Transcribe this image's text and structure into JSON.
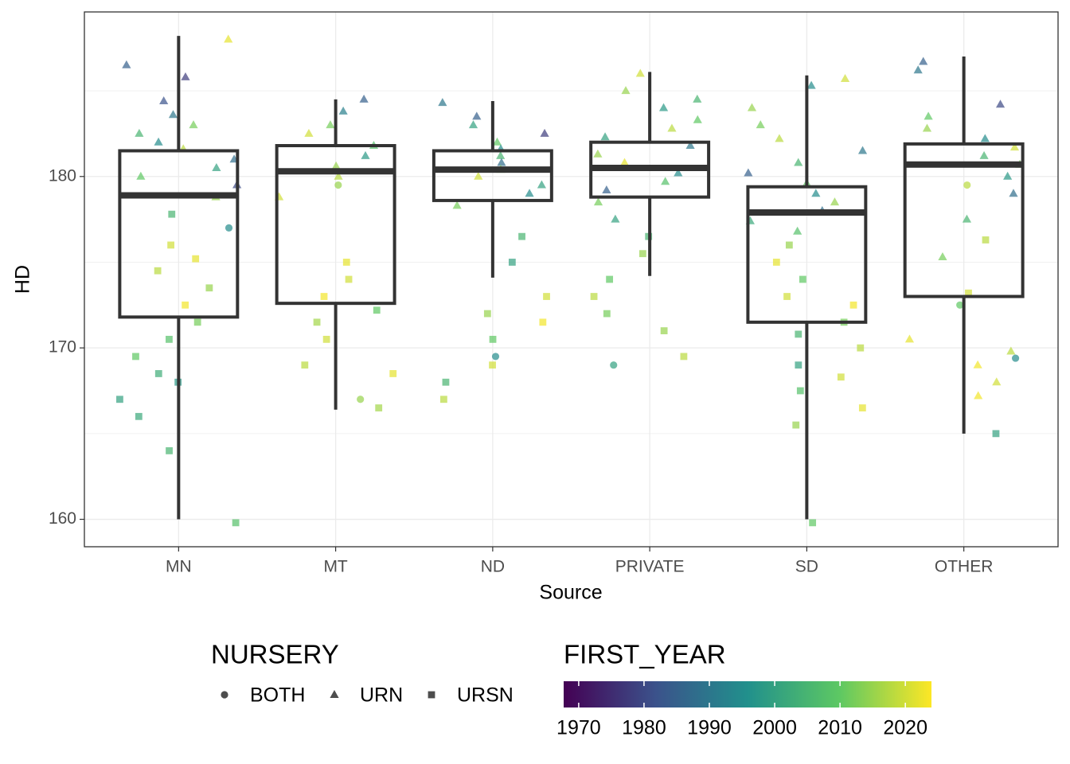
{
  "chart_data": {
    "type": "boxplot",
    "x_label": "Source",
    "y_label": "HD",
    "ylim": [
      158.4,
      189.6
    ],
    "yticks": [
      160,
      170,
      180
    ],
    "minor_yticks": [
      165,
      175,
      185
    ],
    "grid": true,
    "box_color": "#333333",
    "groups": [
      {
        "name": "MN",
        "min": 160,
        "q1": 171.8,
        "median": 178.9,
        "q3": 181.5,
        "max": 188.2,
        "points": [
          {
            "hd": 188,
            "nursery": 1,
            "first_year": 2022
          },
          {
            "hd": 186.5,
            "nursery": 1,
            "first_year": 1985
          },
          {
            "hd": 185.8,
            "nursery": 1,
            "first_year": 1978
          },
          {
            "hd": 184.4,
            "nursery": 1,
            "first_year": 1982
          },
          {
            "hd": 183.6,
            "nursery": 1,
            "first_year": 1990
          },
          {
            "hd": 183,
            "nursery": 1,
            "first_year": 2012
          },
          {
            "hd": 182.5,
            "nursery": 1,
            "first_year": 2005
          },
          {
            "hd": 182,
            "nursery": 1,
            "first_year": 1995
          },
          {
            "hd": 181.6,
            "nursery": 1,
            "first_year": 2018
          },
          {
            "hd": 181,
            "nursery": 1,
            "first_year": 1988
          },
          {
            "hd": 180.5,
            "nursery": 1,
            "first_year": 2000
          },
          {
            "hd": 180,
            "nursery": 1,
            "first_year": 2010
          },
          {
            "hd": 179.5,
            "nursery": 1,
            "first_year": 1980
          },
          {
            "hd": 178.8,
            "nursery": 1,
            "first_year": 2015
          },
          {
            "hd": 177.8,
            "nursery": 2,
            "first_year": 2005
          },
          {
            "hd": 177,
            "nursery": 0,
            "first_year": 1995
          },
          {
            "hd": 176,
            "nursery": 2,
            "first_year": 2020
          },
          {
            "hd": 175.2,
            "nursery": 2,
            "first_year": 2022
          },
          {
            "hd": 174.5,
            "nursery": 2,
            "first_year": 2018
          },
          {
            "hd": 173.5,
            "nursery": 2,
            "first_year": 2015
          },
          {
            "hd": 172.5,
            "nursery": 2,
            "first_year": 2023
          },
          {
            "hd": 171.5,
            "nursery": 2,
            "first_year": 2012
          },
          {
            "hd": 170.5,
            "nursery": 2,
            "first_year": 2008
          },
          {
            "hd": 169.5,
            "nursery": 2,
            "first_year": 2010
          },
          {
            "hd": 168.5,
            "nursery": 2,
            "first_year": 2003
          },
          {
            "hd": 168,
            "nursery": 2,
            "first_year": 1998
          },
          {
            "hd": 167,
            "nursery": 2,
            "first_year": 2000
          },
          {
            "hd": 166,
            "nursery": 2,
            "first_year": 2002
          },
          {
            "hd": 164,
            "nursery": 2,
            "first_year": 2005
          },
          {
            "hd": 159.8,
            "nursery": 2,
            "first_year": 2008
          }
        ]
      },
      {
        "name": "MT",
        "min": 166.4,
        "q1": 172.6,
        "median": 180.3,
        "q3": 181.8,
        "max": 184.5,
        "points": [
          {
            "hd": 184.5,
            "nursery": 1,
            "first_year": 1985
          },
          {
            "hd": 183.8,
            "nursery": 1,
            "first_year": 1992
          },
          {
            "hd": 183,
            "nursery": 1,
            "first_year": 2012
          },
          {
            "hd": 182.5,
            "nursery": 1,
            "first_year": 2020
          },
          {
            "hd": 181.8,
            "nursery": 1,
            "first_year": 2008
          },
          {
            "hd": 181.2,
            "nursery": 1,
            "first_year": 1998
          },
          {
            "hd": 180.6,
            "nursery": 1,
            "first_year": 2015
          },
          {
            "hd": 180,
            "nursery": 1,
            "first_year": 2018
          },
          {
            "hd": 179.5,
            "nursery": 0,
            "first_year": 2015
          },
          {
            "hd": 178.8,
            "nursery": 1,
            "first_year": 2020
          },
          {
            "hd": 175,
            "nursery": 2,
            "first_year": 2022
          },
          {
            "hd": 174,
            "nursery": 2,
            "first_year": 2020
          },
          {
            "hd": 173,
            "nursery": 2,
            "first_year": 2023
          },
          {
            "hd": 172.2,
            "nursery": 2,
            "first_year": 2010
          },
          {
            "hd": 171.5,
            "nursery": 2,
            "first_year": 2016
          },
          {
            "hd": 170.5,
            "nursery": 2,
            "first_year": 2020
          },
          {
            "hd": 169,
            "nursery": 2,
            "first_year": 2018
          },
          {
            "hd": 168.5,
            "nursery": 2,
            "first_year": 2022
          },
          {
            "hd": 167,
            "nursery": 0,
            "first_year": 2015
          },
          {
            "hd": 166.5,
            "nursery": 2,
            "first_year": 2016
          }
        ]
      },
      {
        "name": "ND",
        "min": 174.1,
        "q1": 178.6,
        "median": 180.4,
        "q3": 181.5,
        "max": 184.4,
        "points": [
          {
            "hd": 184.3,
            "nursery": 1,
            "first_year": 1990
          },
          {
            "hd": 183.5,
            "nursery": 1,
            "first_year": 1985
          },
          {
            "hd": 183,
            "nursery": 1,
            "first_year": 2000
          },
          {
            "hd": 182.5,
            "nursery": 1,
            "first_year": 1978
          },
          {
            "hd": 182,
            "nursery": 1,
            "first_year": 2010
          },
          {
            "hd": 181.6,
            "nursery": 1,
            "first_year": 1995
          },
          {
            "hd": 181.2,
            "nursery": 1,
            "first_year": 2005
          },
          {
            "hd": 180.8,
            "nursery": 1,
            "first_year": 1988
          },
          {
            "hd": 180.4,
            "nursery": 1,
            "first_year": 2015
          },
          {
            "hd": 180,
            "nursery": 1,
            "first_year": 2020
          },
          {
            "hd": 179.5,
            "nursery": 1,
            "first_year": 2000
          },
          {
            "hd": 179,
            "nursery": 1,
            "first_year": 1995
          },
          {
            "hd": 178.3,
            "nursery": 1,
            "first_year": 2012
          },
          {
            "hd": 176.5,
            "nursery": 2,
            "first_year": 2005
          },
          {
            "hd": 175,
            "nursery": 2,
            "first_year": 2000
          },
          {
            "hd": 173,
            "nursery": 2,
            "first_year": 2020
          },
          {
            "hd": 172,
            "nursery": 2,
            "first_year": 2015
          },
          {
            "hd": 171.5,
            "nursery": 2,
            "first_year": 2023
          },
          {
            "hd": 170.5,
            "nursery": 2,
            "first_year": 2010
          },
          {
            "hd": 169.5,
            "nursery": 0,
            "first_year": 1995
          },
          {
            "hd": 169,
            "nursery": 2,
            "first_year": 2020
          },
          {
            "hd": 168,
            "nursery": 2,
            "first_year": 2005
          },
          {
            "hd": 167,
            "nursery": 2,
            "first_year": 2018
          }
        ]
      },
      {
        "name": "PRIVATE",
        "min": 174.2,
        "q1": 178.8,
        "median": 180.5,
        "q3": 182.0,
        "max": 186.1,
        "points": [
          {
            "hd": 186,
            "nursery": 1,
            "first_year": 2020
          },
          {
            "hd": 185,
            "nursery": 1,
            "first_year": 2015
          },
          {
            "hd": 184.5,
            "nursery": 1,
            "first_year": 2005
          },
          {
            "hd": 184,
            "nursery": 1,
            "first_year": 1998
          },
          {
            "hd": 183.3,
            "nursery": 1,
            "first_year": 2010
          },
          {
            "hd": 182.8,
            "nursery": 1,
            "first_year": 2018
          },
          {
            "hd": 182.3,
            "nursery": 1,
            "first_year": 2000
          },
          {
            "hd": 181.8,
            "nursery": 1,
            "first_year": 1990
          },
          {
            "hd": 181.3,
            "nursery": 1,
            "first_year": 2015
          },
          {
            "hd": 180.8,
            "nursery": 1,
            "first_year": 2022
          },
          {
            "hd": 180.2,
            "nursery": 1,
            "first_year": 1995
          },
          {
            "hd": 179.7,
            "nursery": 1,
            "first_year": 2008
          },
          {
            "hd": 179.2,
            "nursery": 1,
            "first_year": 1985
          },
          {
            "hd": 178.5,
            "nursery": 1,
            "first_year": 2012
          },
          {
            "hd": 177.5,
            "nursery": 1,
            "first_year": 2000
          },
          {
            "hd": 176.5,
            "nursery": 2,
            "first_year": 2005
          },
          {
            "hd": 175.5,
            "nursery": 2,
            "first_year": 2015
          },
          {
            "hd": 174,
            "nursery": 2,
            "first_year": 2010
          },
          {
            "hd": 173,
            "nursery": 2,
            "first_year": 2018
          },
          {
            "hd": 172,
            "nursery": 2,
            "first_year": 2012
          },
          {
            "hd": 171,
            "nursery": 2,
            "first_year": 2015
          },
          {
            "hd": 169.5,
            "nursery": 2,
            "first_year": 2018
          },
          {
            "hd": 169,
            "nursery": 0,
            "first_year": 2000
          }
        ]
      },
      {
        "name": "SD",
        "min": 160,
        "q1": 171.5,
        "median": 177.9,
        "q3": 179.4,
        "max": 185.9,
        "points": [
          {
            "hd": 185.7,
            "nursery": 1,
            "first_year": 2020
          },
          {
            "hd": 185.3,
            "nursery": 1,
            "first_year": 1995
          },
          {
            "hd": 184,
            "nursery": 1,
            "first_year": 2015
          },
          {
            "hd": 183,
            "nursery": 1,
            "first_year": 2012
          },
          {
            "hd": 182.2,
            "nursery": 1,
            "first_year": 2018
          },
          {
            "hd": 181.5,
            "nursery": 1,
            "first_year": 1990
          },
          {
            "hd": 180.8,
            "nursery": 1,
            "first_year": 2005
          },
          {
            "hd": 180.2,
            "nursery": 1,
            "first_year": 1985
          },
          {
            "hd": 179.6,
            "nursery": 1,
            "first_year": 2010
          },
          {
            "hd": 179,
            "nursery": 1,
            "first_year": 1995
          },
          {
            "hd": 178.5,
            "nursery": 1,
            "first_year": 2015
          },
          {
            "hd": 178,
            "nursery": 1,
            "first_year": 1988
          },
          {
            "hd": 177.4,
            "nursery": 1,
            "first_year": 2002
          },
          {
            "hd": 176.8,
            "nursery": 1,
            "first_year": 2008
          },
          {
            "hd": 176,
            "nursery": 2,
            "first_year": 2015
          },
          {
            "hd": 175,
            "nursery": 2,
            "first_year": 2022
          },
          {
            "hd": 174,
            "nursery": 2,
            "first_year": 2010
          },
          {
            "hd": 173,
            "nursery": 2,
            "first_year": 2020
          },
          {
            "hd": 172.5,
            "nursery": 2,
            "first_year": 2023
          },
          {
            "hd": 171.5,
            "nursery": 2,
            "first_year": 2012
          },
          {
            "hd": 170.8,
            "nursery": 2,
            "first_year": 2005
          },
          {
            "hd": 170,
            "nursery": 2,
            "first_year": 2018
          },
          {
            "hd": 169,
            "nursery": 2,
            "first_year": 2000
          },
          {
            "hd": 168.3,
            "nursery": 2,
            "first_year": 2020
          },
          {
            "hd": 167.5,
            "nursery": 2,
            "first_year": 2008
          },
          {
            "hd": 166.5,
            "nursery": 2,
            "first_year": 2022
          },
          {
            "hd": 165.5,
            "nursery": 2,
            "first_year": 2015
          },
          {
            "hd": 159.8,
            "nursery": 2,
            "first_year": 2010
          }
        ]
      },
      {
        "name": "OTHER",
        "min": 165.0,
        "q1": 173.0,
        "median": 180.7,
        "q3": 181.9,
        "max": 187.0,
        "points": [
          {
            "hd": 186.7,
            "nursery": 1,
            "first_year": 1985
          },
          {
            "hd": 186.2,
            "nursery": 1,
            "first_year": 1990
          },
          {
            "hd": 184.2,
            "nursery": 1,
            "first_year": 1980
          },
          {
            "hd": 183.5,
            "nursery": 1,
            "first_year": 2010
          },
          {
            "hd": 182.8,
            "nursery": 1,
            "first_year": 2015
          },
          {
            "hd": 182.2,
            "nursery": 1,
            "first_year": 1995
          },
          {
            "hd": 181.7,
            "nursery": 1,
            "first_year": 2020
          },
          {
            "hd": 181.2,
            "nursery": 1,
            "first_year": 2005
          },
          {
            "hd": 180.7,
            "nursery": 1,
            "first_year": 2012
          },
          {
            "hd": 180,
            "nursery": 1,
            "first_year": 1998
          },
          {
            "hd": 179.5,
            "nursery": 0,
            "first_year": 2018
          },
          {
            "hd": 179,
            "nursery": 1,
            "first_year": 1988
          },
          {
            "hd": 177.5,
            "nursery": 1,
            "first_year": 2005
          },
          {
            "hd": 175.3,
            "nursery": 1,
            "first_year": 2012
          },
          {
            "hd": 176.3,
            "nursery": 2,
            "first_year": 2018
          },
          {
            "hd": 173.2,
            "nursery": 2,
            "first_year": 2020
          },
          {
            "hd": 172.5,
            "nursery": 0,
            "first_year": 2010
          },
          {
            "hd": 170.5,
            "nursery": 1,
            "first_year": 2022
          },
          {
            "hd": 169.8,
            "nursery": 1,
            "first_year": 2018
          },
          {
            "hd": 169.4,
            "nursery": 0,
            "first_year": 1995
          },
          {
            "hd": 169,
            "nursery": 1,
            "first_year": 2023
          },
          {
            "hd": 168,
            "nursery": 1,
            "first_year": 2020
          },
          {
            "hd": 167.2,
            "nursery": 1,
            "first_year": 2023
          },
          {
            "hd": 165,
            "nursery": 2,
            "first_year": 2000
          }
        ]
      }
    ],
    "shape_legend": {
      "title": "NURSERY",
      "levels": [
        "BOTH",
        "URN",
        "URSN"
      ]
    },
    "color_legend": {
      "title": "FIRST_YEAR",
      "lim": [
        1967.7,
        2024
      ],
      "ticks": [
        1970,
        1980,
        1990,
        2000,
        2010,
        2020
      ],
      "colors": [
        "#440154",
        "#3b528b",
        "#21908c",
        "#5dc863",
        "#fde725"
      ]
    }
  }
}
